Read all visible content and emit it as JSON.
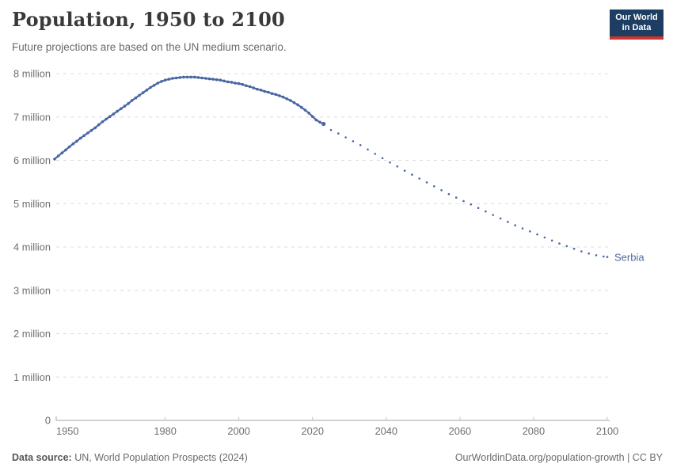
{
  "header": {
    "title": "Population, 1950 to 2100",
    "subtitle": "Future projections are based on the UN medium scenario.",
    "logo": {
      "line1": "Our World",
      "line2": "in Data"
    }
  },
  "footer": {
    "source_label": "Data source:",
    "source_text": " UN, World Population Prospects (2024)",
    "link_text": "OurWorldinData.org/population-growth | CC BY"
  },
  "colors": {
    "series_line": "#4a66a5",
    "entity_label": "#4c6a9c",
    "grid": "#dcdcdc",
    "axis": "#a5a5a5",
    "tick": "#c4c4c4",
    "axis_text": "#6e6e6e",
    "logo_bg": "#1d3d63",
    "logo_red": "#d0342c"
  },
  "chart_data": {
    "type": "line",
    "title": "Population, 1950 to 2100",
    "subtitle": "Future projections are based on the UN medium scenario.",
    "entity": "Serbia",
    "y_unit": "million",
    "xlim": [
      1950,
      2100
    ],
    "ylim_million": [
      0,
      8
    ],
    "grid": true,
    "x_ticks": [
      1950,
      1980,
      2000,
      2020,
      2040,
      2060,
      2080,
      2100
    ],
    "y_ticks_million": [
      0,
      1,
      2,
      3,
      4,
      5,
      6,
      7,
      8
    ],
    "y_tick_label_suffix": " million",
    "series": [
      {
        "name": "Serbia (observed)",
        "style": "solid",
        "color": "#4a66a5",
        "points": [
          [
            1950,
            6.03
          ],
          [
            1951,
            6.1
          ],
          [
            1952,
            6.17
          ],
          [
            1953,
            6.24
          ],
          [
            1954,
            6.31
          ],
          [
            1955,
            6.38
          ],
          [
            1956,
            6.44
          ],
          [
            1957,
            6.51
          ],
          [
            1958,
            6.57
          ],
          [
            1959,
            6.63
          ],
          [
            1960,
            6.69
          ],
          [
            1961,
            6.75
          ],
          [
            1962,
            6.82
          ],
          [
            1963,
            6.89
          ],
          [
            1964,
            6.95
          ],
          [
            1965,
            7.01
          ],
          [
            1966,
            7.07
          ],
          [
            1967,
            7.13
          ],
          [
            1968,
            7.19
          ],
          [
            1969,
            7.25
          ],
          [
            1970,
            7.31
          ],
          [
            1971,
            7.38
          ],
          [
            1972,
            7.44
          ],
          [
            1973,
            7.5
          ],
          [
            1974,
            7.56
          ],
          [
            1975,
            7.62
          ],
          [
            1976,
            7.68
          ],
          [
            1977,
            7.73
          ],
          [
            1978,
            7.78
          ],
          [
            1979,
            7.82
          ],
          [
            1980,
            7.85
          ],
          [
            1981,
            7.87
          ],
          [
            1982,
            7.89
          ],
          [
            1983,
            7.9
          ],
          [
            1984,
            7.91
          ],
          [
            1985,
            7.92
          ],
          [
            1986,
            7.92
          ],
          [
            1987,
            7.92
          ],
          [
            1988,
            7.92
          ],
          [
            1989,
            7.91
          ],
          [
            1990,
            7.9
          ],
          [
            1991,
            7.89
          ],
          [
            1992,
            7.88
          ],
          [
            1993,
            7.87
          ],
          [
            1994,
            7.86
          ],
          [
            1995,
            7.85
          ],
          [
            1996,
            7.83
          ],
          [
            1997,
            7.81
          ],
          [
            1998,
            7.8
          ],
          [
            1999,
            7.78
          ],
          [
            2000,
            7.77
          ],
          [
            2001,
            7.75
          ],
          [
            2002,
            7.72
          ],
          [
            2003,
            7.7
          ],
          [
            2004,
            7.67
          ],
          [
            2005,
            7.64
          ],
          [
            2006,
            7.62
          ],
          [
            2007,
            7.59
          ],
          [
            2008,
            7.57
          ],
          [
            2009,
            7.54
          ],
          [
            2010,
            7.52
          ],
          [
            2011,
            7.49
          ],
          [
            2012,
            7.46
          ],
          [
            2013,
            7.42
          ],
          [
            2014,
            7.38
          ],
          [
            2015,
            7.33
          ],
          [
            2016,
            7.28
          ],
          [
            2017,
            7.22
          ],
          [
            2018,
            7.16
          ],
          [
            2019,
            7.09
          ],
          [
            2020,
            7.01
          ],
          [
            2021,
            6.93
          ],
          [
            2022,
            6.88
          ],
          [
            2023,
            6.84
          ]
        ]
      },
      {
        "name": "Serbia (UN medium projection)",
        "style": "dotted",
        "color": "#4a66a5",
        "points": [
          [
            2025,
            6.7
          ],
          [
            2027,
            6.62
          ],
          [
            2029,
            6.53
          ],
          [
            2031,
            6.44
          ],
          [
            2033,
            6.35
          ],
          [
            2035,
            6.25
          ],
          [
            2037,
            6.15
          ],
          [
            2039,
            6.05
          ],
          [
            2041,
            5.95
          ],
          [
            2043,
            5.86
          ],
          [
            2045,
            5.76
          ],
          [
            2047,
            5.67
          ],
          [
            2049,
            5.58
          ],
          [
            2051,
            5.49
          ],
          [
            2053,
            5.4
          ],
          [
            2055,
            5.31
          ],
          [
            2057,
            5.22
          ],
          [
            2059,
            5.14
          ],
          [
            2061,
            5.06
          ],
          [
            2063,
            4.98
          ],
          [
            2065,
            4.9
          ],
          [
            2067,
            4.82
          ],
          [
            2069,
            4.74
          ],
          [
            2071,
            4.66
          ],
          [
            2073,
            4.58
          ],
          [
            2075,
            4.5
          ],
          [
            2077,
            4.43
          ],
          [
            2079,
            4.36
          ],
          [
            2081,
            4.29
          ],
          [
            2083,
            4.22
          ],
          [
            2085,
            4.15
          ],
          [
            2087,
            4.08
          ],
          [
            2089,
            4.02
          ],
          [
            2091,
            3.96
          ],
          [
            2093,
            3.9
          ],
          [
            2095,
            3.85
          ],
          [
            2097,
            3.81
          ],
          [
            2099,
            3.78
          ],
          [
            2100,
            3.77
          ]
        ]
      }
    ],
    "end_label": "Serbia"
  }
}
